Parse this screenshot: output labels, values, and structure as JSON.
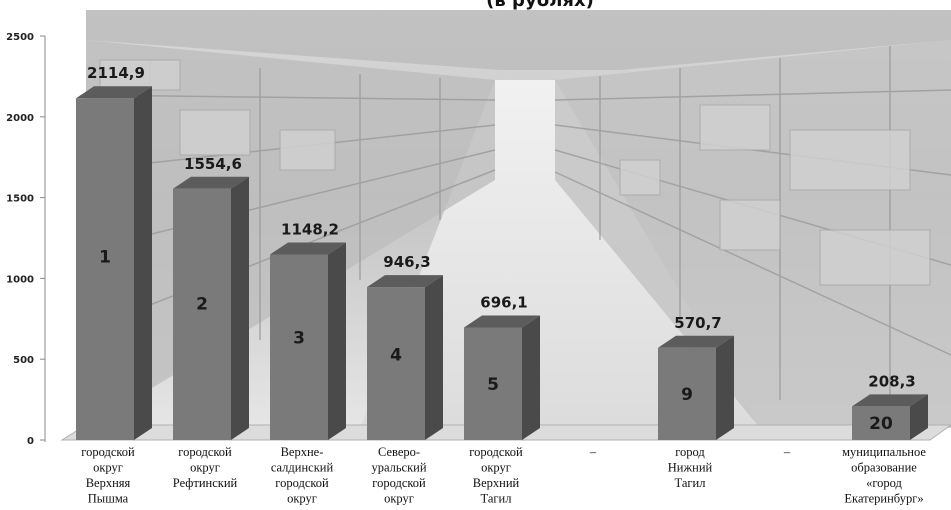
{
  "chart_data": {
    "type": "bar",
    "title": "(в рублях)",
    "ylim": [
      0,
      2500
    ],
    "yticks": [
      "0",
      "500",
      "1000",
      "1500",
      "2000",
      "2500"
    ],
    "grid": false,
    "legend": "none",
    "categories": [
      [
        "городской",
        "округ",
        "Верхняя",
        "Пышма"
      ],
      [
        "городской",
        "округ",
        "Рефтинский"
      ],
      [
        "Верхне-",
        "салдинский",
        "городской",
        "округ"
      ],
      [
        "Северо-",
        "уральский",
        "городской",
        "округ"
      ],
      [
        "городской",
        "округ",
        "Верхний",
        "Тагил"
      ],
      [
        "–"
      ],
      [
        "город",
        "Нижний",
        "Тагил"
      ],
      [
        "–"
      ],
      [
        "муниципальное",
        "образование",
        "«город",
        "Екатеринбург»"
      ]
    ],
    "values": [
      2114.9,
      1554.6,
      1148.2,
      946.3,
      696.1,
      null,
      570.7,
      null,
      208.3
    ],
    "value_labels": [
      "2114,9",
      "1554,6",
      "1148,2",
      "946,3",
      "696,1",
      "",
      "570,7",
      "",
      "208,3"
    ],
    "ranks": [
      "1",
      "2",
      "3",
      "4",
      "5",
      "",
      "9",
      "",
      "20"
    ],
    "colors": {
      "bar_front": "#7a7a7a",
      "bar_side": "#4a4a4a",
      "bar_top": "#5c5c5c",
      "floor": "#d7d7d7"
    }
  }
}
